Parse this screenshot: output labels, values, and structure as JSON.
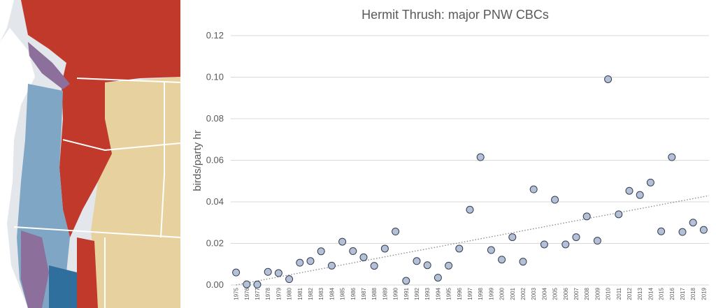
{
  "map": {
    "colors": {
      "high_abundance": "#c0392b",
      "mid_abundance": "#e7d29f",
      "low_abundance": "#7fa6c4",
      "coastal_blue": "#2e6f9e",
      "purple": "#8c6f9a",
      "background": "#e3e6ea",
      "borders": "#ffffff"
    }
  },
  "chart_data": {
    "type": "scatter",
    "title": "Hermit Thrush: major PNW CBCs",
    "xlabel": "",
    "ylabel": "birds/party hr",
    "ylim": [
      0,
      0.12
    ],
    "yticks": [
      "0.00",
      "0.02",
      "0.04",
      "0.06",
      "0.08",
      "0.10",
      "0.12"
    ],
    "grid": true,
    "legend": "none",
    "marker_fill": "#b4c0d6",
    "marker_stroke": "#333d52",
    "trendline": {
      "style": "dotted",
      "color": "#888888",
      "start": 0.0,
      "end": 0.043
    },
    "x": [
      "1975",
      "1976",
      "1977",
      "1978",
      "1979",
      "1980",
      "1981",
      "1982",
      "1983",
      "1984",
      "1985",
      "1986",
      "1987",
      "1988",
      "1989",
      "1990",
      "1991",
      "1992",
      "1993",
      "1994",
      "1995",
      "1996",
      "1997",
      "1998",
      "1999",
      "2000",
      "2001",
      "2002",
      "2003",
      "2004",
      "2005",
      "2006",
      "2007",
      "2008",
      "2009",
      "2010",
      "2011",
      "2012",
      "2013",
      "2014",
      "2015",
      "2016",
      "2017",
      "2018",
      "2019"
    ],
    "values": [
      0.006,
      0.0003,
      0.0002,
      0.0063,
      0.0057,
      0.0028,
      0.0107,
      0.0115,
      0.0162,
      0.0093,
      0.0208,
      0.0163,
      0.0133,
      0.0092,
      0.0175,
      0.0257,
      0.002,
      0.0115,
      0.0095,
      0.0035,
      0.0093,
      0.0175,
      0.0362,
      0.0615,
      0.0168,
      0.0122,
      0.023,
      0.0112,
      0.046,
      0.0195,
      0.041,
      0.0195,
      0.023,
      0.033,
      0.0213,
      0.099,
      0.034,
      0.0453,
      0.0433,
      0.0493,
      0.0258,
      0.0615,
      0.0255,
      0.03,
      0.0265
    ]
  }
}
